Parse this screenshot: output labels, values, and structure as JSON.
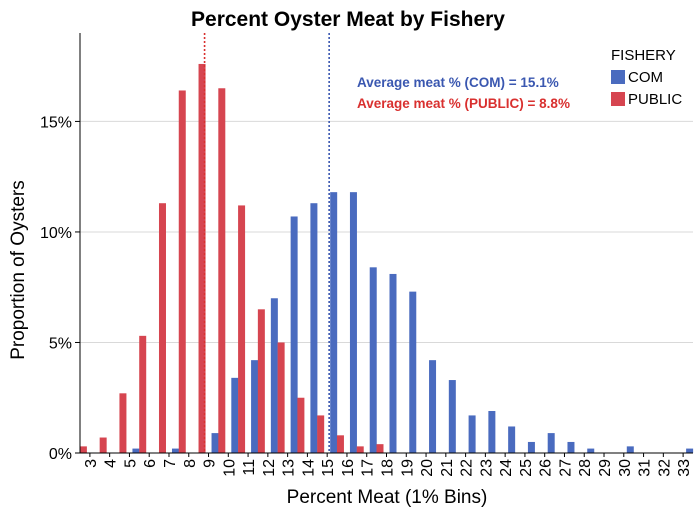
{
  "chart_data": {
    "type": "bar",
    "title": "Percent Oyster Meat by Fishery",
    "xlabel": "Percent Meat (1% Bins)",
    "ylabel": "Proportion of Oysters",
    "categories": [
      "3",
      "4",
      "5",
      "6",
      "7",
      "8",
      "9",
      "10",
      "11",
      "12",
      "13",
      "14",
      "15",
      "16",
      "17",
      "18",
      "19",
      "20",
      "21",
      "22",
      "23",
      "24",
      "25",
      "26",
      "27",
      "28",
      "29",
      "30",
      "31",
      "32",
      "33"
    ],
    "ylim": [
      0,
      0.19
    ],
    "yticks": [
      0,
      0.05,
      0.1,
      0.15
    ],
    "ytick_labels": [
      "0%",
      "5%",
      "10%",
      "15%"
    ],
    "grid": "horizontal",
    "legend": {
      "title": "FISHERY",
      "placement": "top-right"
    },
    "series": [
      {
        "name": "COM",
        "color": "#4a6bbf",
        "values": [
          0,
          0,
          0.002,
          0,
          0.002,
          0,
          0.009,
          0.034,
          0.042,
          0.07,
          0.107,
          0.113,
          0.118,
          0.118,
          0.084,
          0.081,
          0.073,
          0.042,
          0.033,
          0.017,
          0.019,
          0.012,
          0.005,
          0.009,
          0.005,
          0.002,
          0,
          0.003,
          0,
          0,
          0.002
        ]
      },
      {
        "name": "PUBLIC",
        "color": "#d64550",
        "values": [
          0.003,
          0.007,
          0.027,
          0.053,
          0.113,
          0.164,
          0.176,
          0.165,
          0.112,
          0.065,
          0.05,
          0.025,
          0.017,
          0.008,
          0.003,
          0.004,
          0,
          0,
          0,
          0,
          0,
          0,
          0,
          0,
          0,
          0,
          0,
          0,
          0,
          0,
          0
        ]
      }
    ],
    "reference_lines": [
      {
        "series": "COM",
        "x": 15.1,
        "color": "#3a57b0",
        "style": "dotted"
      },
      {
        "series": "PUBLIC",
        "x": 8.8,
        "color": "#d9302f",
        "style": "dotted"
      }
    ],
    "annotations": [
      {
        "text": "Average meat % (COM) = 15.1%",
        "color": "#3a57b0"
      },
      {
        "text": "Average meat % (PUBLIC) = 8.8%",
        "color": "#d9302f"
      }
    ]
  }
}
